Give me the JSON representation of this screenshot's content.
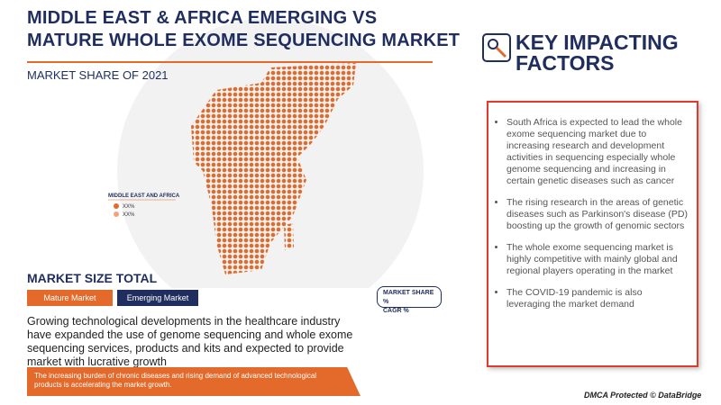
{
  "header": {
    "title_lines": [
      "MIDDLE EAST & AFRICA EMERGING VS",
      "MATURE WHOLE EXOME SEQUENCING MARKET"
    ],
    "subtitle": "MARKET SHARE OF 2021"
  },
  "map_legend": {
    "region": "MIDDLE EAST AND AFRICA",
    "items": [
      "XX%",
      "XX%"
    ]
  },
  "metrics_box": [
    "MARKET SHARE %",
    "CAGR %"
  ],
  "market_size": {
    "title": "MARKET SIZE TOTAL",
    "buttons": [
      "Mature Market",
      "Emerging Market"
    ],
    "description": "Growing technological developments in the healthcare industry have expanded the use of genome sequencing and whole exome sequencing services, products and kits and expected to provide market with lucrative growth"
  },
  "banner": "The increasing burden of chronic diseases and rising demand of advanced technological products is accelerating the market growth.",
  "factors": {
    "title_lines": [
      "KEY IMPACTING",
      "FACTORS"
    ],
    "bullets": [
      "South Africa is expected to lead the whole exome sequencing market due to increasing research and development activities in sequencing especially whole genome sequencing and increasing in certain genetic diseases such as cancer",
      "The rising research in the areas of genetic diseases such as Parkinson's disease (PD) boosting up the growth of genomic sectors",
      "The whole exome sequencing market is highly competitive with mainly global and regional players operating in the market",
      "The COVID-19 pandemic is also leveraging the market demand"
    ]
  },
  "footer": "DMCA Protected © DataBridge"
}
